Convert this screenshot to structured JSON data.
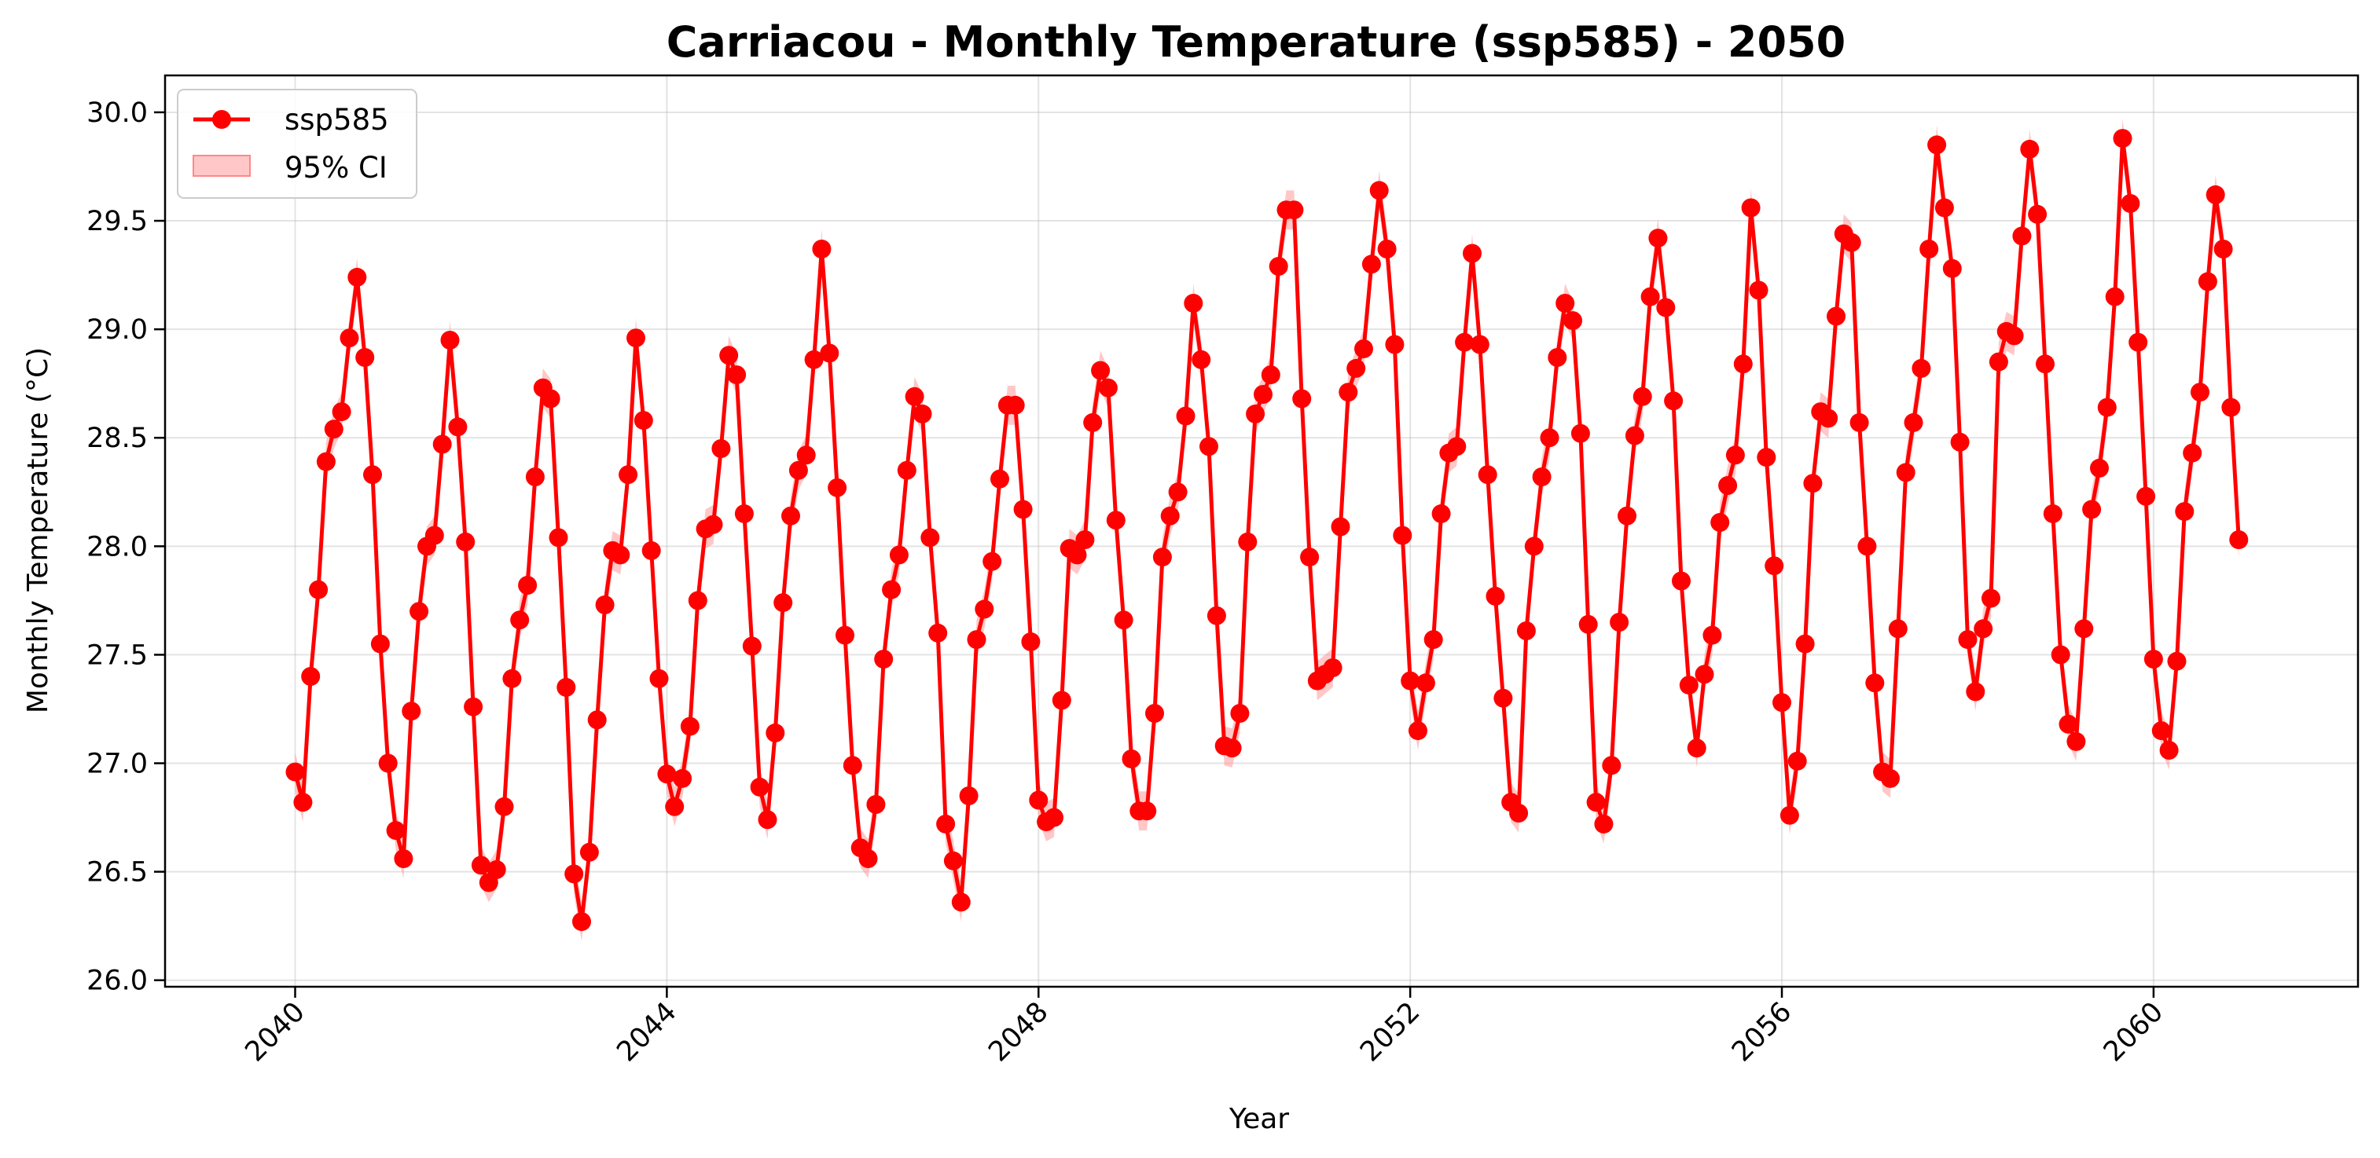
{
  "chart_data": {
    "type": "line",
    "title": "Carriacou - Monthly Temperature (ssp585) - 2050",
    "xlabel": "Year",
    "ylabel": "Monthly Temperature (°C)",
    "xlim": [
      2038.6,
      2062.2
    ],
    "ylim": [
      25.97,
      30.17
    ],
    "x_start": "2040-01",
    "x_step": "monthly",
    "x_ticks": [
      2040,
      2044,
      2048,
      2052,
      2056,
      2060
    ],
    "x_tick_labels": [
      "2040",
      "2044",
      "2048",
      "2052",
      "2056",
      "2060"
    ],
    "y_ticks": [
      26.0,
      26.5,
      27.0,
      27.5,
      28.0,
      28.5,
      29.0,
      29.5,
      30.0
    ],
    "y_tick_labels": [
      "26.0",
      "26.5",
      "27.0",
      "27.5",
      "28.0",
      "28.5",
      "29.0",
      "29.5",
      "30.0"
    ],
    "grid": true,
    "legend_position": "top-left",
    "ci_half_width": 0.09,
    "series": [
      {
        "name": "ssp585",
        "color": "#ff0000",
        "ci_label": "95% CI",
        "ci_color": "#ff9999",
        "values": [
          26.96,
          26.82,
          27.4,
          27.8,
          28.39,
          28.54,
          28.62,
          28.96,
          29.24,
          28.87,
          28.33,
          27.55,
          27.0,
          26.69,
          26.56,
          27.24,
          27.7,
          28.0,
          28.05,
          28.47,
          28.95,
          28.55,
          28.02,
          27.26,
          26.53,
          26.45,
          26.51,
          26.8,
          27.39,
          27.66,
          27.82,
          28.32,
          28.73,
          28.68,
          28.04,
          27.35,
          26.49,
          26.27,
          26.59,
          27.2,
          27.73,
          27.98,
          27.96,
          28.33,
          28.96,
          28.58,
          27.98,
          27.39,
          26.95,
          26.8,
          26.93,
          27.17,
          27.75,
          28.08,
          28.1,
          28.45,
          28.88,
          28.79,
          28.15,
          27.54,
          26.89,
          26.74,
          27.14,
          27.74,
          28.14,
          28.35,
          28.42,
          28.86,
          29.37,
          28.89,
          28.27,
          27.59,
          26.99,
          26.61,
          26.56,
          26.81,
          27.48,
          27.8,
          27.96,
          28.35,
          28.69,
          28.61,
          28.04,
          27.6,
          26.72,
          26.55,
          26.36,
          26.85,
          27.57,
          27.71,
          27.93,
          28.31,
          28.65,
          28.65,
          28.17,
          27.56,
          26.83,
          26.73,
          26.75,
          27.29,
          27.99,
          27.96,
          28.03,
          28.57,
          28.81,
          28.73,
          28.12,
          27.66,
          27.02,
          26.78,
          26.78,
          27.23,
          27.95,
          28.14,
          28.25,
          28.6,
          29.12,
          28.86,
          28.46,
          27.68,
          27.08,
          27.07,
          27.23,
          28.02,
          28.61,
          28.7,
          28.79,
          29.29,
          29.55,
          29.55,
          28.68,
          27.95,
          27.38,
          27.41,
          27.44,
          28.09,
          28.71,
          28.82,
          28.91,
          29.3,
          29.64,
          29.37,
          28.93,
          28.05,
          27.38,
          27.15,
          27.37,
          27.57,
          28.15,
          28.43,
          28.46,
          28.94,
          29.35,
          28.93,
          28.33,
          27.77,
          27.3,
          26.82,
          26.77,
          27.61,
          28.0,
          28.32,
          28.5,
          28.87,
          29.12,
          29.04,
          28.52,
          27.64,
          26.82,
          26.72,
          26.99,
          27.65,
          28.14,
          28.51,
          28.69,
          29.15,
          29.42,
          29.1,
          28.67,
          27.84,
          27.36,
          27.07,
          27.41,
          27.59,
          28.11,
          28.28,
          28.42,
          28.84,
          29.56,
          29.18,
          28.41,
          27.91,
          27.28,
          26.76,
          27.01,
          27.55,
          28.29,
          28.62,
          28.59,
          29.06,
          29.44,
          29.4,
          28.57,
          28.0,
          27.37,
          26.96,
          26.93,
          27.62,
          28.34,
          28.57,
          28.82,
          29.37,
          29.85,
          29.56,
          29.28,
          28.48,
          27.57,
          27.33,
          27.62,
          27.76,
          28.85,
          28.99,
          28.97,
          29.43,
          29.83,
          29.53,
          28.84,
          28.15,
          27.5,
          27.18,
          27.1,
          27.62,
          28.17,
          28.36,
          28.64,
          29.15,
          29.88,
          29.58,
          28.94,
          28.23,
          27.48,
          27.15,
          27.06,
          27.47,
          28.16,
          28.43,
          28.71,
          29.22,
          29.62,
          29.37,
          28.64,
          28.03
        ]
      }
    ]
  }
}
